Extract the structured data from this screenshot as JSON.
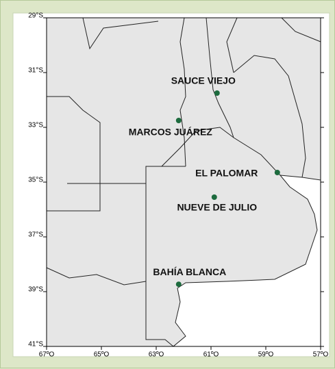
{
  "map": {
    "xlim": [
      -67,
      -57
    ],
    "ylim": [
      -41,
      -29
    ],
    "xticks": [
      {
        "value": -67,
        "label": "67ºO"
      },
      {
        "value": -65,
        "label": "65ºO"
      },
      {
        "value": -63,
        "label": "63ºO"
      },
      {
        "value": -61,
        "label": "61ºO"
      },
      {
        "value": -59,
        "label": "59ºO"
      },
      {
        "value": -57,
        "label": "57ºO"
      }
    ],
    "yticks": [
      {
        "value": -29,
        "label": "29°S"
      },
      {
        "value": -31,
        "label": "31°S"
      },
      {
        "value": -33,
        "label": "33°S"
      },
      {
        "value": -35,
        "label": "35°S"
      },
      {
        "value": -37,
        "label": "37°S"
      },
      {
        "value": -39,
        "label": "39°S"
      },
      {
        "value": -41,
        "label": "41°S"
      }
    ],
    "station_color": "#1d6b3e",
    "stations": [
      {
        "name": "SAUCE VIEJO",
        "lon": -60.78,
        "lat": -31.75
      },
      {
        "name": "MARCOS JUÁREZ",
        "lon": -62.18,
        "lat": -32.75
      },
      {
        "name": "EL PALOMAR",
        "lon": -58.58,
        "lat": -34.65
      },
      {
        "name": "NUEVE DE JULIO",
        "lon": -60.88,
        "lat": -35.55
      },
      {
        "name": "BAHÍA BLANCA",
        "lon": -62.18,
        "lat": -38.73
      }
    ]
  }
}
